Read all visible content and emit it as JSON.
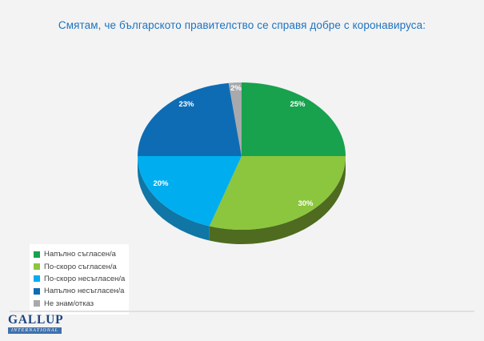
{
  "title": "Смятам, че българското правителство се справя добре с коронавируса:",
  "title_color": "#1E73BE",
  "background_color": "#F3F3F4",
  "chart_data": {
    "type": "pie",
    "style": "3d",
    "title": "Смятам, че българското правителство се справя добре с коронавируса:",
    "legend_position": "bottom-left",
    "categories": [
      "Напълно съгласен/а",
      "По-скоро съгласен/а",
      "По-скоро несъгласен/а",
      "Напълно несъгласен/а",
      "Не знам/отказ"
    ],
    "values": [
      25,
      30,
      20,
      23,
      2
    ],
    "labels": [
      "25%",
      "30%",
      "20%",
      "23%",
      "2%"
    ],
    "colors": [
      "#18A24D",
      "#8CC63E",
      "#00AEEF",
      "#0E6CB5",
      "#A7A9AC"
    ],
    "side_colors": [
      "#0C5A2C",
      "#4E6B1F",
      "#0F76A6",
      "#093F6B",
      "#6F7173"
    ],
    "label_color": "#FFFFFF"
  },
  "legend": {
    "items": [
      {
        "label": "Напълно съгласен/а",
        "color": "#18A24D"
      },
      {
        "label": "По-скоро съгласен/а",
        "color": "#8CC63E"
      },
      {
        "label": "По-скоро несъгласен/а",
        "color": "#00AEEF"
      },
      {
        "label": "Напълно несъгласен/а",
        "color": "#0E6CB5"
      },
      {
        "label": "Не знам/отказ",
        "color": "#A7A9AC"
      }
    ]
  },
  "footer": {
    "logo_text": "GALLUP",
    "logo_subtext": "INTERNATIONAL"
  }
}
